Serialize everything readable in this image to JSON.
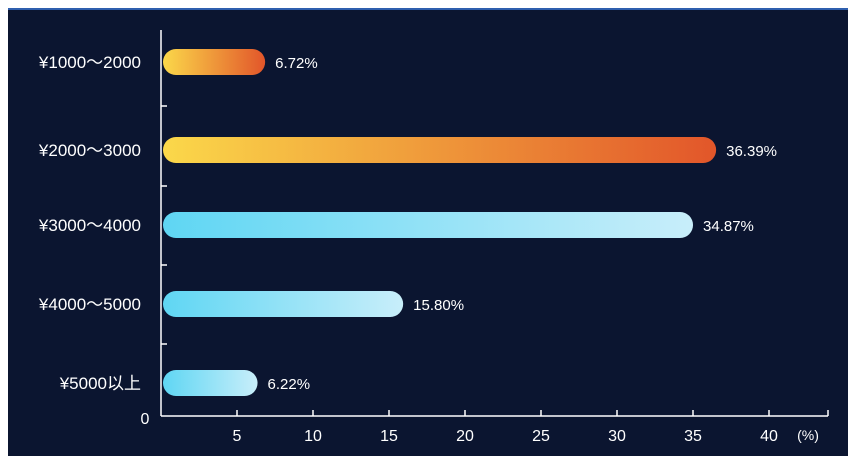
{
  "chart_data": {
    "type": "bar",
    "orientation": "horizontal",
    "categories": [
      "¥1000～2000",
      "¥2000～3000",
      "¥3000～4000",
      "¥4000～5000",
      "¥5000以上"
    ],
    "values": [
      6.72,
      36.39,
      34.87,
      15.8,
      6.22
    ],
    "value_labels": [
      "6.72%",
      "36.39%",
      "34.87%",
      "15.80%",
      "6.22%"
    ],
    "xticks": [
      5,
      10,
      15,
      20,
      25,
      30,
      35,
      40
    ],
    "xlim": [
      0,
      44
    ],
    "origin_label": "0",
    "unit_label": "(%)",
    "colors": {
      "background": "#0b1530",
      "warm_start": "#fbd84a",
      "warm_end": "#e2562a",
      "cool_start": "#5fd6f3",
      "cool_end": "#c8eefa"
    },
    "bar_styles": [
      "warm",
      "warm",
      "cool",
      "cool",
      "cool"
    ]
  }
}
